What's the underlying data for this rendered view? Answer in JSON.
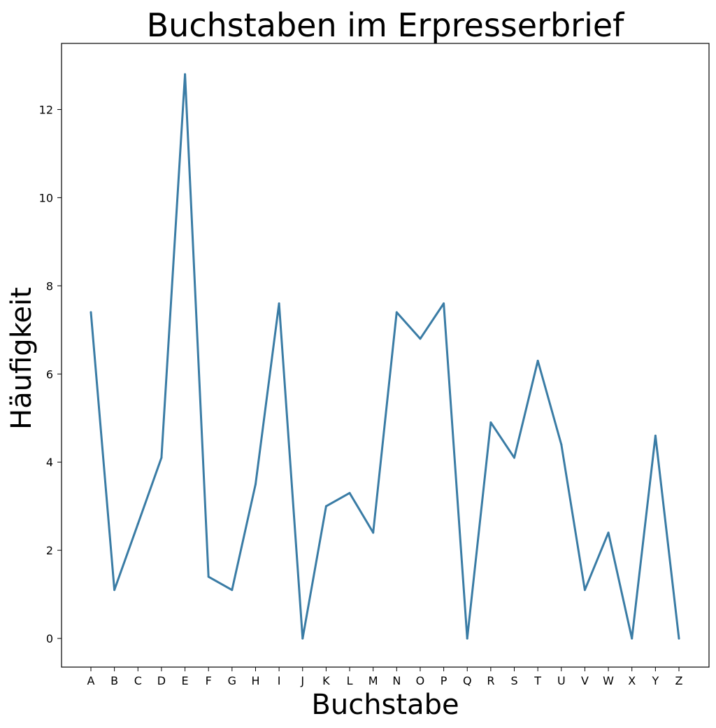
{
  "chart_data": {
    "type": "line",
    "title": "Buchstaben im Erpresserbrief",
    "xlabel": "Buchstabe",
    "ylabel": "Häufigkeit",
    "categories": [
      "A",
      "B",
      "C",
      "D",
      "E",
      "F",
      "G",
      "H",
      "I",
      "J",
      "K",
      "L",
      "M",
      "N",
      "O",
      "P",
      "Q",
      "R",
      "S",
      "T",
      "U",
      "V",
      "W",
      "X",
      "Y",
      "Z"
    ],
    "series": [
      {
        "values": [
          7.4,
          1.1,
          2.6,
          4.1,
          12.8,
          1.4,
          1.1,
          3.5,
          7.6,
          0,
          3.0,
          3.3,
          2.4,
          7.4,
          6.8,
          7.6,
          0,
          4.9,
          4.1,
          6.3,
          4.4,
          1.1,
          2.4,
          0,
          4.6,
          0
        ],
        "color": "#3a7ca5"
      }
    ],
    "ylim": [
      -0.65,
      13.5
    ],
    "yticks": [
      "0",
      "2",
      "4",
      "6",
      "8",
      "10",
      "12"
    ],
    "grid": false,
    "legend": "none"
  }
}
